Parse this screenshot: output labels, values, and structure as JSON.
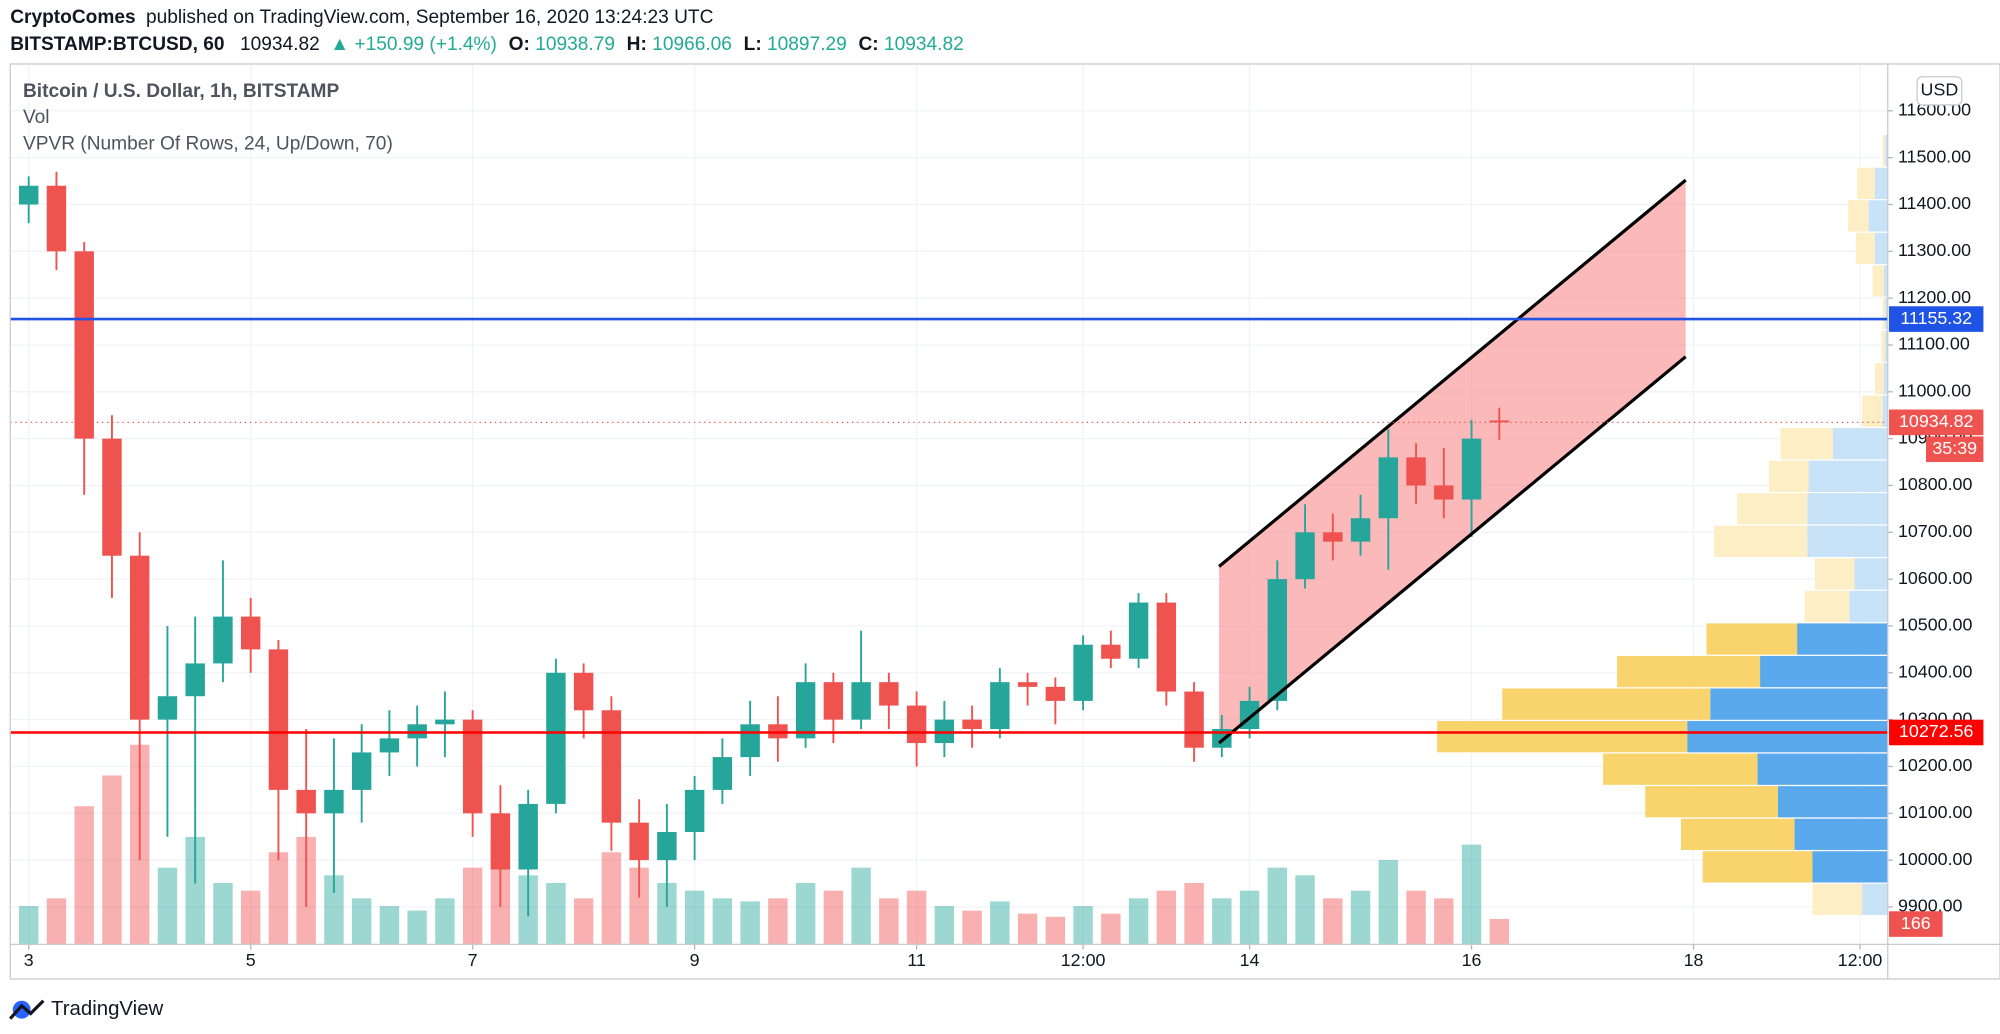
{
  "header": {
    "publisher": "CryptoComes",
    "published": "published on TradingView.com, September 16, 2020 13:24:23 UTC",
    "symbol": "BITSTAMP:BTCUSD, 60",
    "last": "10934.82",
    "change": "▲ +150.99 (+1.4%)",
    "ohlc": [
      {
        "label": "O:",
        "value": "10938.79"
      },
      {
        "label": "H:",
        "value": "10966.06"
      },
      {
        "label": "L:",
        "value": "10897.29"
      },
      {
        "label": "C:",
        "value": "10934.82"
      }
    ]
  },
  "footer": {
    "brand": "TradingView"
  },
  "chart_data": {
    "type": "candlestick",
    "title": "Bitcoin / U.S. Dollar, 1h, BITSTAMP",
    "volume_title": "Vol",
    "vpvr_title": "VPVR (Number Of Rows, 24, Up/Down, 70)",
    "currency": "USD",
    "countdown": "35:39",
    "up_color": "#26a69a",
    "down_color": "#ef5350",
    "x": [
      0,
      6,
      12,
      18,
      24,
      30,
      36,
      42,
      48,
      54,
      60,
      66,
      72,
      78,
      84,
      90,
      96,
      102,
      108,
      114,
      120,
      126,
      132,
      138,
      144,
      150,
      156,
      162,
      168,
      174,
      180,
      186,
      192,
      198,
      204,
      210,
      216,
      222,
      228,
      234,
      240,
      246,
      252,
      258,
      264,
      270,
      276,
      282,
      288,
      294,
      300,
      306,
      312,
      318
    ],
    "open": [
      11400,
      11440,
      11300,
      10900,
      10650,
      10300,
      10350,
      10420,
      10520,
      10450,
      10150,
      10100,
      10150,
      10230,
      10260,
      10290,
      10300,
      10100,
      9980,
      10120,
      10400,
      10320,
      10080,
      10000,
      10060,
      10150,
      10220,
      10290,
      10260,
      10380,
      10300,
      10380,
      10330,
      10250,
      10300,
      10280,
      10380,
      10370,
      10340,
      10460,
      10430,
      10550,
      10360,
      10240,
      10280,
      10340,
      10600,
      10700,
      10680,
      10730,
      10860,
      10800,
      10770,
      10938.79
    ],
    "high": [
      11460,
      11470,
      11320,
      10950,
      10700,
      10500,
      10520,
      10640,
      10560,
      10470,
      10280,
      10260,
      10290,
      10320,
      10330,
      10360,
      10320,
      10160,
      10150,
      10430,
      10420,
      10350,
      10130,
      10120,
      10180,
      10260,
      10340,
      10350,
      10420,
      10400,
      10490,
      10400,
      10360,
      10340,
      10330,
      10410,
      10400,
      10390,
      10480,
      10490,
      10570,
      10570,
      10380,
      10310,
      10370,
      10640,
      10760,
      10740,
      10780,
      10920,
      10890,
      10880,
      10940,
      10966.06
    ],
    "low": [
      11360,
      11260,
      10780,
      10560,
      10000,
      10050,
      9950,
      10380,
      10400,
      10000,
      9900,
      9930,
      10080,
      10180,
      10200,
      10220,
      10050,
      9900,
      9880,
      10100,
      10260,
      10020,
      9920,
      9900,
      10000,
      10120,
      10180,
      10210,
      10240,
      10250,
      10280,
      10280,
      10200,
      10220,
      10240,
      10260,
      10330,
      10290,
      10320,
      10410,
      10410,
      10330,
      10210,
      10220,
      10260,
      10320,
      10580,
      10640,
      10650,
      10620,
      10760,
      10730,
      10690,
      10897.29
    ],
    "close": [
      11440,
      11300,
      10900,
      10650,
      10300,
      10350,
      10420,
      10520,
      10450,
      10150,
      10100,
      10150,
      10230,
      10260,
      10290,
      10300,
      10100,
      9980,
      10120,
      10400,
      10320,
      10080,
      10000,
      10060,
      10150,
      10220,
      10290,
      10260,
      10380,
      10300,
      10380,
      10330,
      10250,
      10300,
      10280,
      10380,
      10370,
      10340,
      10460,
      10430,
      10550,
      10360,
      10240,
      10280,
      10340,
      10600,
      10700,
      10680,
      10730,
      10860,
      10800,
      10770,
      10900,
      10934.82
    ],
    "volume": [
      250,
      300,
      900,
      1100,
      1300,
      500,
      700,
      400,
      350,
      600,
      700,
      450,
      300,
      250,
      220,
      300,
      500,
      700,
      450,
      400,
      300,
      600,
      500,
      400,
      350,
      300,
      280,
      300,
      400,
      350,
      500,
      300,
      350,
      250,
      220,
      280,
      200,
      180,
      250,
      200,
      300,
      350,
      400,
      300,
      350,
      500,
      450,
      300,
      350,
      550,
      350,
      300,
      650,
      166
    ],
    "vlim": [
      0,
      1500
    ],
    "xlim": [
      -4,
      402
    ],
    "xticks": [
      {
        "value": 0,
        "label": "3"
      },
      {
        "value": 48,
        "label": "5"
      },
      {
        "value": 96,
        "label": "7"
      },
      {
        "value": 144,
        "label": "9"
      },
      {
        "value": 192,
        "label": "11"
      },
      {
        "value": 228,
        "label": "12:00"
      },
      {
        "value": 264,
        "label": "14"
      },
      {
        "value": 312,
        "label": "16"
      },
      {
        "value": 360,
        "label": "18"
      },
      {
        "value": 396,
        "label": "12:00"
      }
    ],
    "ylim": [
      9820,
      11700
    ],
    "yticks": [
      {
        "value": 9900,
        "label": "9900.00"
      },
      {
        "value": 10000,
        "label": "10000.00"
      },
      {
        "value": 10100,
        "label": "10100.00"
      },
      {
        "value": 10200,
        "label": "10200.00"
      },
      {
        "value": 10300,
        "label": "10300.00"
      },
      {
        "value": 10400,
        "label": "10400.00"
      },
      {
        "value": 10500,
        "label": "10500.00"
      },
      {
        "value": 10600,
        "label": "10600.00"
      },
      {
        "value": 10700,
        "label": "10700.00"
      },
      {
        "value": 10800,
        "label": "10800.00"
      },
      {
        "value": 10900,
        "label": "10900.00"
      },
      {
        "value": 11000,
        "label": "11000.00"
      },
      {
        "value": 11100,
        "label": "11100.00"
      },
      {
        "value": 11200,
        "label": "11200.00"
      },
      {
        "value": 11300,
        "label": "11300.00"
      },
      {
        "value": 11400,
        "label": "11400.00"
      },
      {
        "value": 11500,
        "label": "11500.00"
      },
      {
        "value": 11600,
        "label": "11600.00"
      }
    ],
    "grid": true,
    "vpvr": {
      "rows_low": 9880,
      "rows_high": 11548,
      "up": [
        20,
        59,
        73,
        86,
        102,
        157,
        139,
        100,
        71,
        30,
        26,
        63,
        63,
        62,
        43,
        4,
        3,
        2,
        2,
        3,
        10,
        15,
        10,
        2
      ],
      "down": [
        39,
        86,
        89,
        104,
        121,
        196,
        163,
        112,
        71,
        35,
        31,
        73,
        55,
        31,
        41,
        16,
        7,
        3,
        2,
        9,
        15,
        16,
        14,
        2
      ],
      "value_area": [
        1,
        8
      ],
      "up_color": "#5aa9ec",
      "down_color": "#f9d36b",
      "up_color_faded": "#c8e2f8",
      "down_color_faded": "#fdeec6"
    },
    "channel": {
      "x": [
        257.4,
        358.3
      ],
      "upper": [
        10627,
        11452
      ],
      "lower": [
        10250,
        11075
      ],
      "fill": "#f88a8c",
      "color": "#000000"
    },
    "levels": [
      {
        "value": 11155.32,
        "color": "#1e53e5"
      },
      {
        "value": 10272.56,
        "color": "#ff0000"
      }
    ]
  }
}
